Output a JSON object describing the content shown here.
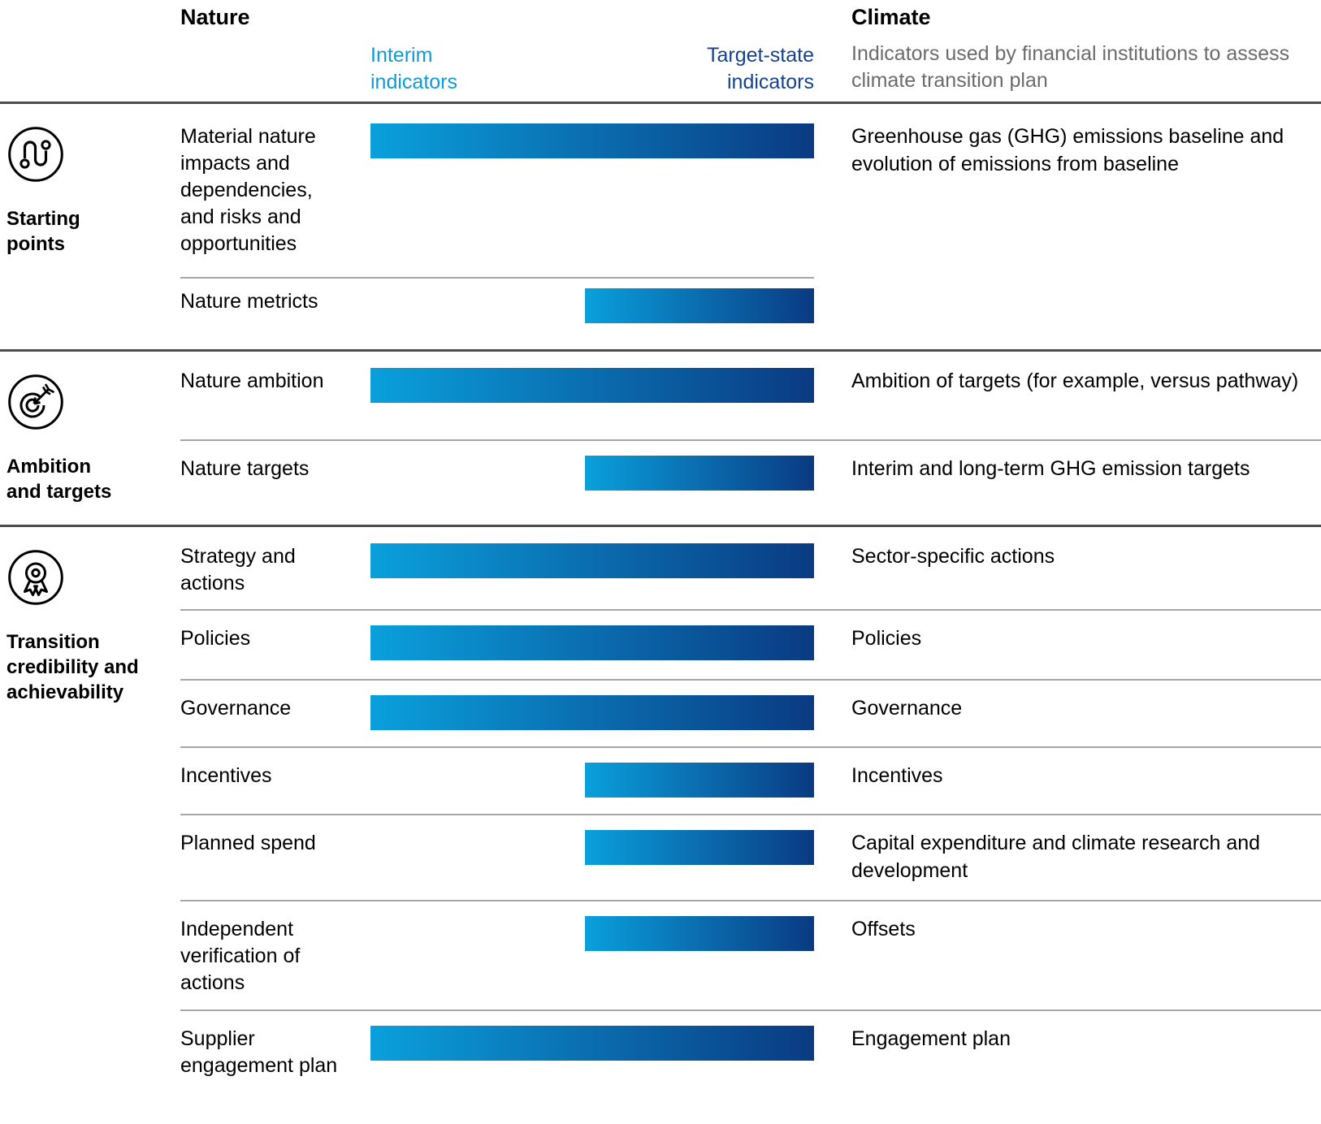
{
  "header": {
    "nature_title": "Nature",
    "climate_title": "Climate",
    "interim_label": "Interim indicators",
    "target_state_label": "Target-state indicators",
    "climate_subtitle": "Indicators used by financial institutions to assess climate transition plan"
  },
  "colors": {
    "interim_text": "#0E9BD8",
    "target_state_text": "#16418F",
    "bar_gradient_start": "#0AA0DC",
    "bar_gradient_end": "#0A3A82",
    "heavy_divider": "#4d4d4d",
    "light_divider": "#a6a6a6",
    "subtitle_gray": "#6b6b6b"
  },
  "sections": [
    {
      "label": "Starting\npoints",
      "icon": "route-icon",
      "rows": [
        {
          "nature": "Material nature impacts and dependencies, and risks and opportunities",
          "bar": "full",
          "climate": "Greenhouse gas (GHG) emissions baseline and evolution of emissions from baseline"
        },
        {
          "nature": "Nature metricts",
          "bar": "half",
          "climate": ""
        }
      ]
    },
    {
      "label": "Ambition\nand targets",
      "icon": "target-icon",
      "rows": [
        {
          "nature": "Nature ambition",
          "bar": "full",
          "climate": "Ambition of targets (for example, versus pathway)"
        },
        {
          "nature": "Nature targets",
          "bar": "half",
          "climate": "Interim and long-term GHG emission targets"
        }
      ]
    },
    {
      "label": "Transition\ncredibility and\nachievability",
      "icon": "award-icon",
      "rows": [
        {
          "nature": "Strategy and actions",
          "bar": "full",
          "climate": "Sector-specific actions"
        },
        {
          "nature": "Policies",
          "bar": "full",
          "climate": "Policies"
        },
        {
          "nature": "Governance",
          "bar": "full",
          "climate": "Governance"
        },
        {
          "nature": "Incentives",
          "bar": "half",
          "climate": "Incentives"
        },
        {
          "nature": "Planned spend",
          "bar": "half",
          "climate": "Capital expenditure and climate research and development"
        },
        {
          "nature": "Independent verification of actions",
          "bar": "half",
          "climate": "Offsets"
        },
        {
          "nature": "Supplier engagement plan",
          "bar": "full",
          "climate": "Engagement plan"
        }
      ]
    }
  ]
}
